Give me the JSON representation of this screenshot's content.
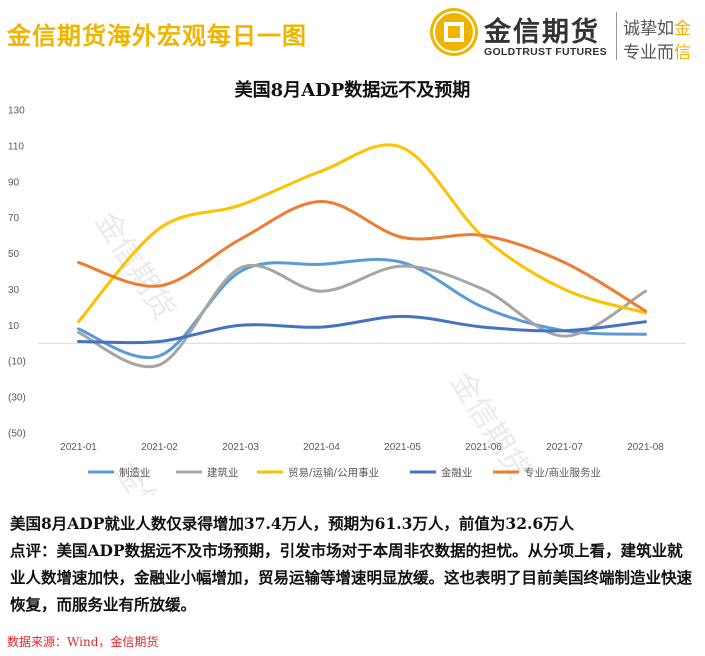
{
  "header": {
    "title": "金信期货海外宏观每日一图",
    "logo_cn": "金信期货",
    "logo_en": "GOLDTRUST FUTURES",
    "slogan_line1_a": "诚挚如",
    "slogan_line1_b": "金",
    "slogan_line2_a": "专业而",
    "slogan_line2_b": "信"
  },
  "watermark": "金信期货",
  "chart_data": {
    "type": "line",
    "title": "美国8月ADP数据远不及预期",
    "categories": [
      "2021-01",
      "2021-02",
      "2021-03",
      "2021-04",
      "2021-05",
      "2021-06",
      "2021-07",
      "2021-08"
    ],
    "ylim": [
      -50,
      130
    ],
    "yticks": [
      -50,
      -30,
      -10,
      10,
      30,
      50,
      70,
      90,
      110,
      130
    ],
    "ytick_labels": [
      "(50)",
      "(30)",
      "(10)",
      "10",
      "30",
      "50",
      "70",
      "90",
      "110",
      "130"
    ],
    "series": [
      {
        "name": "制造业",
        "color": "#5b9bd5",
        "values": [
          8,
          -7,
          40,
          44,
          45,
          20,
          7,
          5
        ]
      },
      {
        "name": "建筑业",
        "color": "#a5a5a5",
        "values": [
          6,
          -12,
          42,
          29,
          43,
          30,
          4,
          29
        ]
      },
      {
        "name": "贸易/运输/公用事业",
        "color": "#ffc000",
        "values": [
          12,
          64,
          77,
          96,
          109,
          59,
          30,
          17
        ]
      },
      {
        "name": "金融业",
        "color": "#4472c4",
        "values": [
          1,
          1,
          10,
          9,
          15,
          9,
          7,
          12
        ]
      },
      {
        "name": "专业/商业服务业",
        "color": "#ed7d31",
        "values": [
          45,
          32,
          58,
          79,
          59,
          60,
          45,
          18
        ]
      }
    ],
    "legend": "bottom"
  },
  "comment": {
    "line1": "美国8月ADP就业人数仅录得增加37.4万人，预期为61.3万人，前值为32.6万人",
    "line2": "点评：美国ADP数据远不及市场预期，引发市场对于本周非农数据的担忧。从分项上看，建筑业就业人数增速加快，金融业小幅增加，贸易运输等增速明显放缓。这也表明了目前美国终端制造业快速恢复，而服务业有所放缓。"
  },
  "source": "数据来源：Wind，金信期货"
}
